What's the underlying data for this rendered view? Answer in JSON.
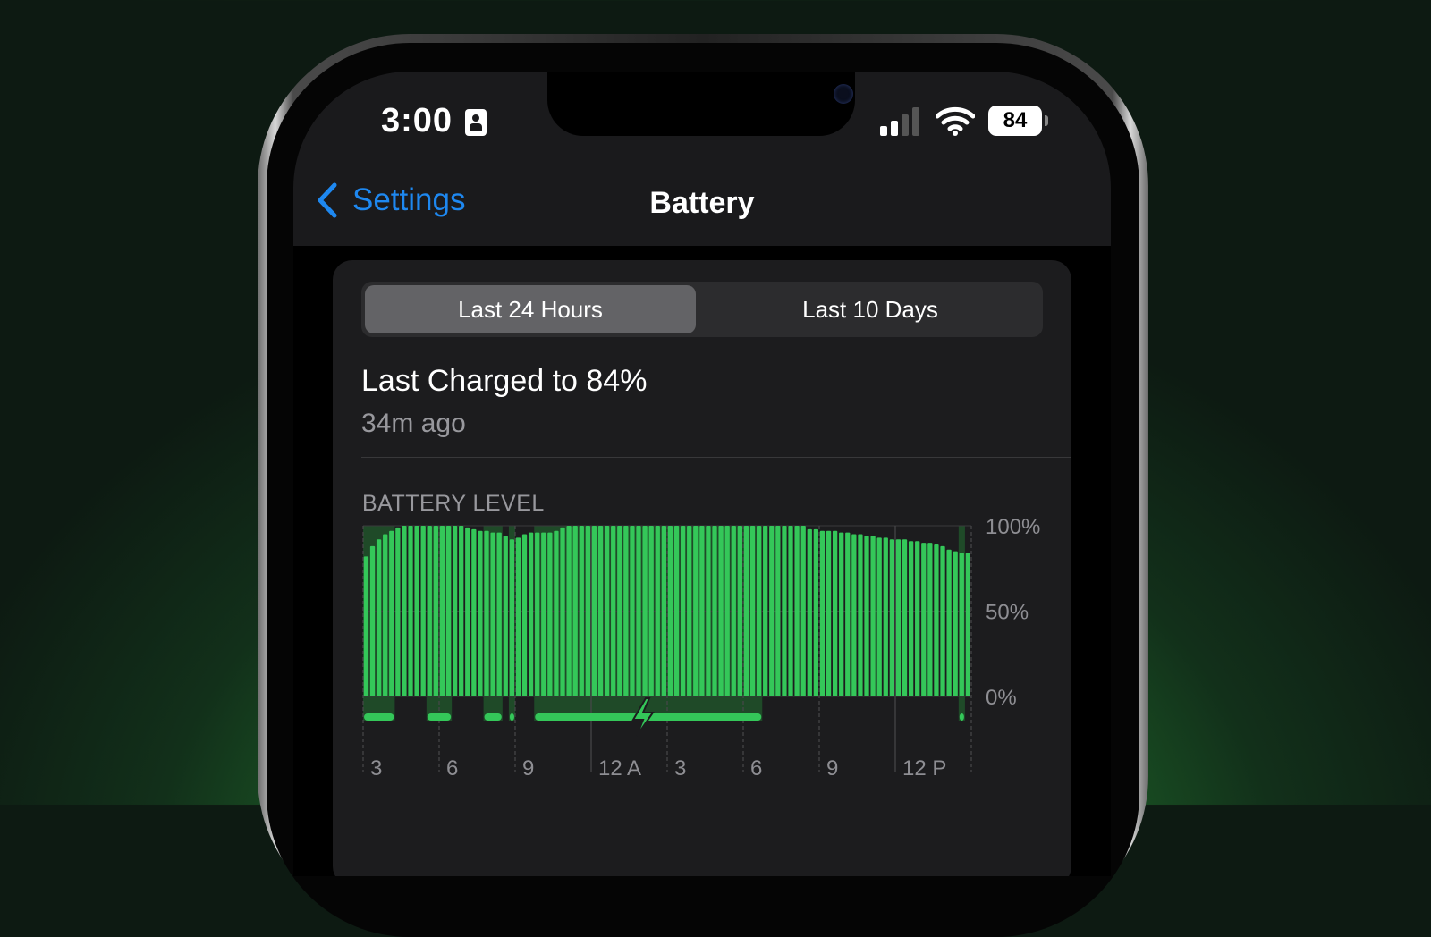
{
  "status_bar": {
    "time": "3:00",
    "battery_percent": "84",
    "signal_bars": 2,
    "signal_bars_total": 4,
    "icons": [
      "id-card-icon",
      "cellular-signal-icon",
      "wifi-icon",
      "battery-icon"
    ]
  },
  "nav": {
    "back_label": "Settings",
    "title": "Battery"
  },
  "segmented": {
    "options": [
      "Last 24 Hours",
      "Last 10 Days"
    ],
    "selected": "Last 24 Hours"
  },
  "last_charged": {
    "title": "Last Charged to 84%",
    "subtitle": "34m ago"
  },
  "colors": {
    "accent": "#1e88f0",
    "bar": "#34c759",
    "background": "#1c1c1e"
  },
  "chart_data": {
    "type": "bar",
    "title": "BATTERY LEVEL",
    "y_tick_labels": [
      "100%",
      "50%",
      "0%"
    ],
    "ylim": [
      0,
      100
    ],
    "x_tick_labels": [
      "3",
      "6",
      "9",
      "12 A",
      "3",
      "6",
      "9",
      "12 P"
    ],
    "interval": "15 min",
    "start_time": "3 PM",
    "values": [
      82,
      88,
      92,
      95,
      97,
      99,
      100,
      100,
      100,
      100,
      100,
      100,
      100,
      100,
      100,
      100,
      99,
      98,
      97,
      97,
      96,
      96,
      94,
      92,
      93,
      95,
      96,
      96,
      96,
      96,
      97,
      99,
      100,
      100,
      100,
      100,
      100,
      100,
      100,
      100,
      100,
      100,
      100,
      100,
      100,
      100,
      100,
      100,
      100,
      100,
      100,
      100,
      100,
      100,
      100,
      100,
      100,
      100,
      100,
      100,
      100,
      100,
      100,
      100,
      100,
      100,
      100,
      100,
      100,
      100,
      98,
      98,
      97,
      97,
      97,
      96,
      96,
      95,
      95,
      94,
      94,
      93,
      93,
      92,
      92,
      92,
      91,
      91,
      90,
      90,
      89,
      88,
      86,
      85,
      84,
      84
    ],
    "charging_segments": [
      [
        "3:00 PM",
        "4:00 PM"
      ],
      [
        "5:30 PM",
        "6:15 PM"
      ],
      [
        "7:45 PM",
        "8:15 PM"
      ],
      [
        "8:45 PM",
        "8:45 PM"
      ],
      [
        "9:45 PM",
        "6:30 AM"
      ],
      [
        "2:30 PM",
        "2:30 PM"
      ]
    ]
  }
}
